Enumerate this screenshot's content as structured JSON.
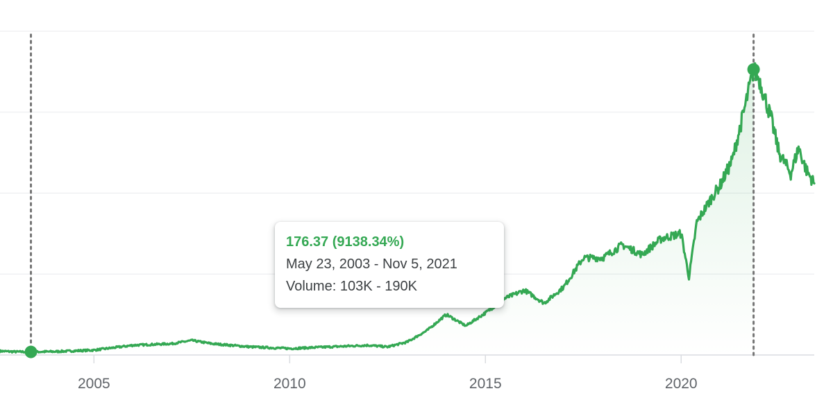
{
  "chart_data": {
    "type": "area",
    "title": "",
    "xlabel": "",
    "ylabel": "",
    "grid": true,
    "legend": "none",
    "xlim": [
      2002.6,
      2023.4
    ],
    "ylim": [
      0,
      200
    ],
    "x_ticks": [
      "2005",
      "2010",
      "2015",
      "2020"
    ],
    "colors": {
      "line": "#34a853",
      "fill": "#34a853",
      "grid": "#e8eaed",
      "marker_line": "#757575",
      "tick_text": "#5f6368"
    },
    "series": [
      {
        "points": [
          [
            2002.6,
            2.4
          ],
          [
            2003.0,
            2.0
          ],
          [
            2003.39,
            1.9
          ],
          [
            2004.0,
            2.1
          ],
          [
            2005.0,
            3.0
          ],
          [
            2006.0,
            6.0
          ],
          [
            2007.0,
            7.0
          ],
          [
            2007.5,
            9.0
          ],
          [
            2008.0,
            7.0
          ],
          [
            2009.0,
            5.0
          ],
          [
            2010.0,
            4.0
          ],
          [
            2011.0,
            5.0
          ],
          [
            2012.0,
            6.0
          ],
          [
            2012.5,
            5.0
          ],
          [
            2013.0,
            8.0
          ],
          [
            2013.5,
            15.0
          ],
          [
            2014.0,
            25.0
          ],
          [
            2014.5,
            18.0
          ],
          [
            2015.0,
            26.0
          ],
          [
            2015.5,
            35.0
          ],
          [
            2016.0,
            40.0
          ],
          [
            2016.5,
            32.0
          ],
          [
            2017.0,
            42.0
          ],
          [
            2017.5,
            60.0
          ],
          [
            2018.0,
            60.0
          ],
          [
            2018.5,
            68.0
          ],
          [
            2019.0,
            62.0
          ],
          [
            2019.5,
            72.0
          ],
          [
            2020.0,
            75.0
          ],
          [
            2020.2,
            48.0
          ],
          [
            2020.4,
            82.0
          ],
          [
            2020.8,
            98.0
          ],
          [
            2021.0,
            105.0
          ],
          [
            2021.3,
            120.0
          ],
          [
            2021.6,
            150.0
          ],
          [
            2021.85,
            176.37
          ],
          [
            2022.0,
            170.0
          ],
          [
            2022.3,
            146.0
          ],
          [
            2022.5,
            125.0
          ],
          [
            2022.8,
            112.0
          ],
          [
            2023.0,
            128.0
          ],
          [
            2023.2,
            114.0
          ],
          [
            2023.4,
            106.0
          ]
        ]
      }
    ],
    "range_start": {
      "x": 2003.39,
      "y": 1.9
    },
    "range_end": {
      "x": 2021.85,
      "y": 176.37
    },
    "tooltip": {
      "value": "176.37 (9138.34%)",
      "date_range": "May 23, 2003 - Nov 5, 2021",
      "volume": "Volume: 103K - 190K"
    }
  }
}
